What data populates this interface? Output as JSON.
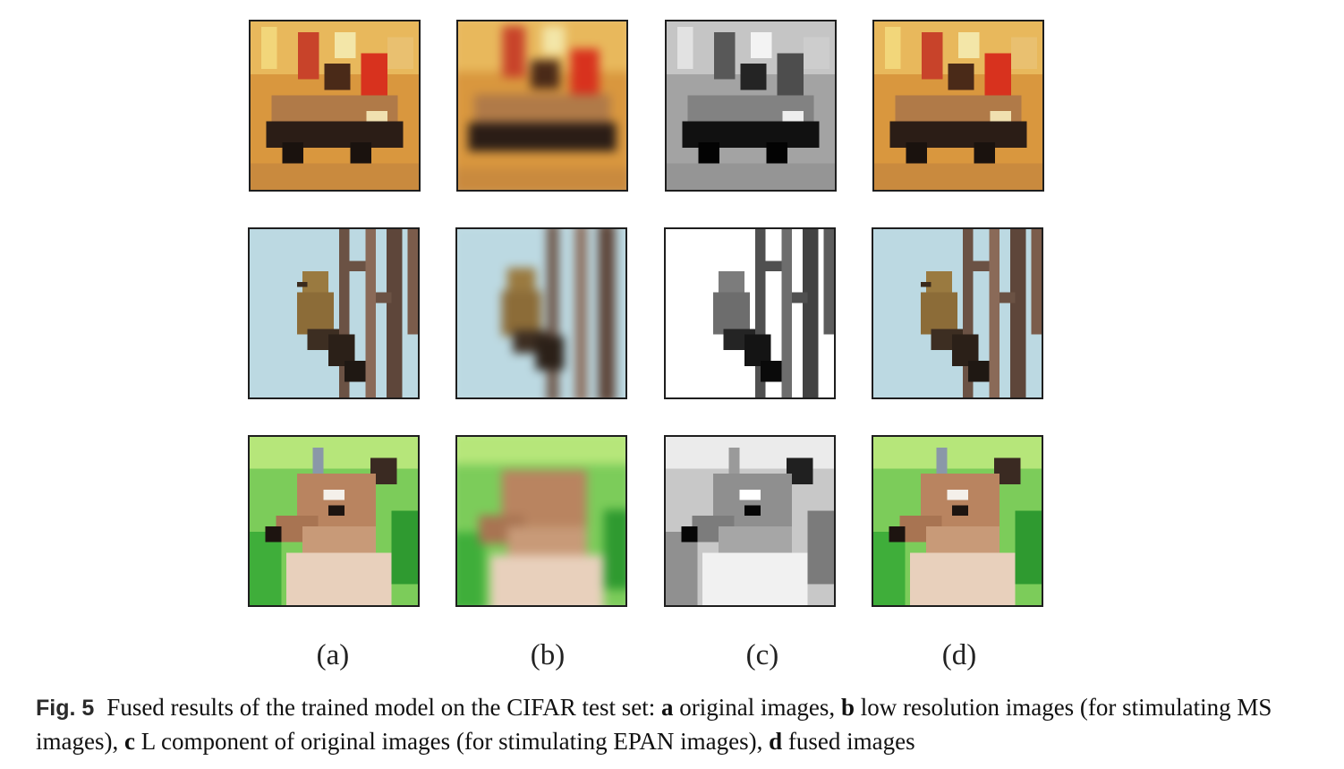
{
  "figure": {
    "column_labels": [
      "(a)",
      "(b)",
      "(c)",
      "(d)"
    ],
    "rows": [
      {
        "subject": "car",
        "tiles": [
          "original",
          "low-resolution",
          "L-component",
          "fused"
        ]
      },
      {
        "subject": "bird",
        "tiles": [
          "original",
          "low-resolution",
          "L-component",
          "fused"
        ]
      },
      {
        "subject": "deer",
        "tiles": [
          "original",
          "low-resolution",
          "L-component",
          "fused"
        ]
      }
    ]
  },
  "caption": {
    "label": "Fig. 5",
    "intro": "Fused results of the trained model on the CIFAR test set: ",
    "items": [
      {
        "key": "a",
        "text": " original images, "
      },
      {
        "key": "b",
        "text": " low resolution images (for stimulating MS images), "
      },
      {
        "key": "c",
        "text": " L component of original images (for stimulating EPAN images), "
      },
      {
        "key": "d",
        "text": " fused images"
      }
    ]
  },
  "colors": {
    "car_bg": "#d99a4a",
    "car_red": "#c83a1f",
    "bird_sky": "#bcd9e2",
    "deer_green": "#5fbf4a",
    "deer_fur": "#b98460"
  }
}
